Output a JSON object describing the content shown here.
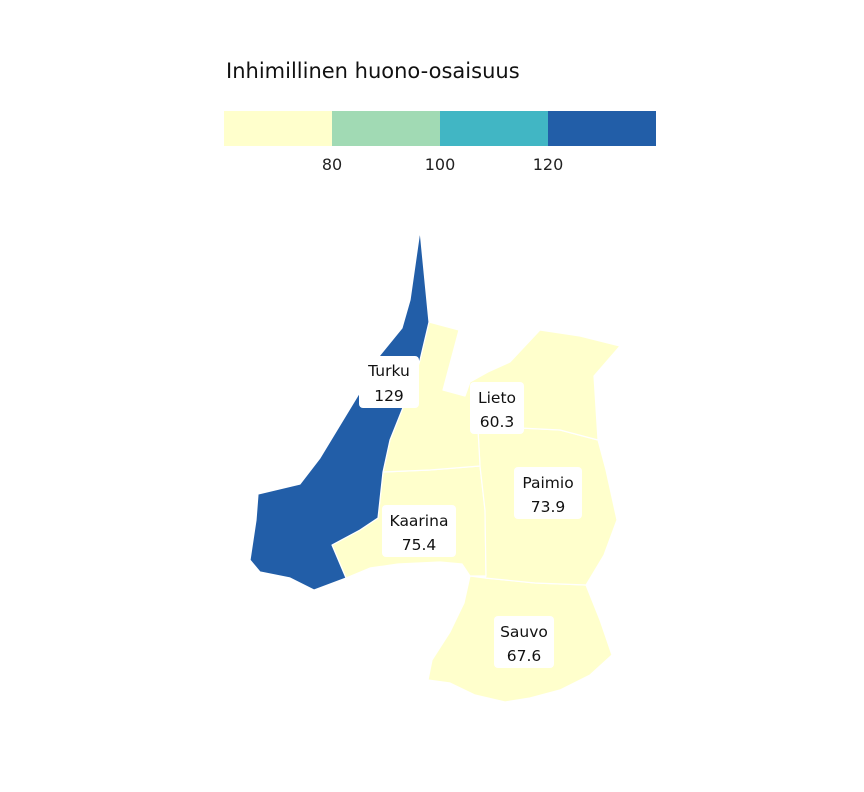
{
  "legend": {
    "title": "Inhimillinen huono-osaisuus",
    "bins": [
      {
        "color": "#ffffcc"
      },
      {
        "color": "#a1dab4"
      },
      {
        "color": "#41b6c4"
      },
      {
        "color": "#225ea8"
      }
    ],
    "ticks": [
      "80",
      "100",
      "120"
    ]
  },
  "regions": [
    {
      "name": "Turku",
      "value": "129",
      "fill": "#225ea8"
    },
    {
      "name": "Lieto",
      "value": "60.3",
      "fill": "#ffffcc"
    },
    {
      "name": "Paimio",
      "value": "73.9",
      "fill": "#ffffcc"
    },
    {
      "name": "Kaarina",
      "value": "75.4",
      "fill": "#ffffcc"
    },
    {
      "name": "Sauvo",
      "value": "67.6",
      "fill": "#ffffcc"
    }
  ]
}
